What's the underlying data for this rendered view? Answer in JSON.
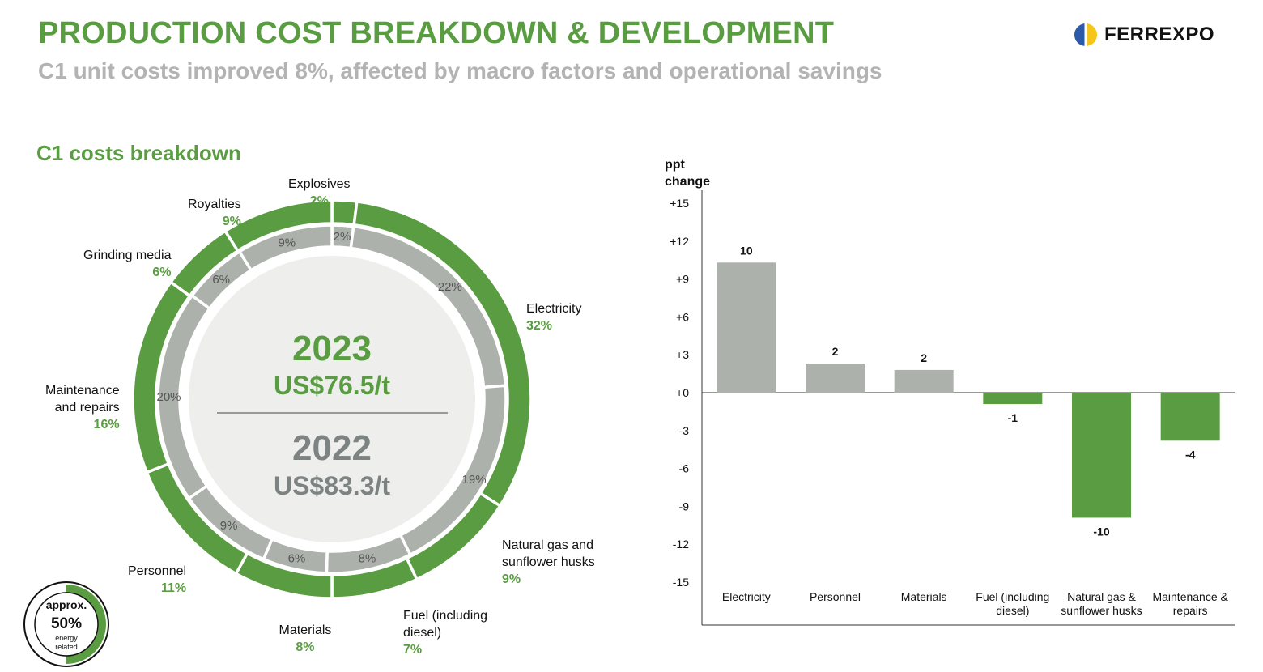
{
  "header": {
    "title": "PRODUCTION COST BREAKDOWN & DEVELOPMENT",
    "subtitle": "C1 unit costs improved 8%, affected by macro factors and operational savings",
    "logo_text": "FERREXPO"
  },
  "donut": {
    "section_title": "C1 costs breakdown",
    "center": {
      "year_current": "2023",
      "value_current": "US$76.5/t",
      "year_prior": "2022",
      "value_prior": "US$83.3/t"
    },
    "badge": {
      "line1": "approx.",
      "line2": "50%",
      "line3": "energy",
      "line4": "related",
      "fraction": 0.5
    },
    "colors": {
      "outer": "#5a9c41",
      "inner": "#acb1ab",
      "center": "#eeefed"
    }
  },
  "chart_data": [
    {
      "type": "pie",
      "name": "2023",
      "categories": [
        "Explosives",
        "Electricity",
        "Natural gas and sunflower husks",
        "Fuel (including diesel)",
        "Materials",
        "Personnel",
        "Maintenance and repairs",
        "Grinding media",
        "Royalties"
      ],
      "values": [
        2,
        32,
        9,
        7,
        8,
        11,
        16,
        6,
        9
      ],
      "labels": [
        "2%",
        "32%",
        "9%",
        "7%",
        "8%",
        "11%",
        "16%",
        "6%",
        "9%"
      ],
      "label_lines": [
        [
          "Explosives"
        ],
        [
          "Electricity"
        ],
        [
          "Natural gas and",
          "sunflower husks"
        ],
        [
          "Fuel (including",
          "diesel)"
        ],
        [
          "Materials"
        ],
        [
          "Personnel"
        ],
        [
          "Maintenance",
          "and repairs"
        ],
        [
          "Grinding media"
        ],
        [
          "Royalties"
        ]
      ]
    },
    {
      "type": "pie",
      "name": "2022",
      "categories": [
        "Explosives",
        "Electricity",
        "Natural gas and sunflower husks",
        "Fuel (including diesel)",
        "Materials",
        "Personnel",
        "Maintenance and repairs",
        "Grinding media",
        "Royalties"
      ],
      "values": [
        2,
        22,
        19,
        8,
        6,
        9,
        20,
        6,
        9
      ],
      "labels": [
        "2%",
        "22%",
        "19%",
        "8%",
        "6%",
        "9%",
        "20%",
        "6%",
        "9%"
      ]
    },
    {
      "type": "bar",
      "ylabel": "ppt change",
      "ylabel_lines": [
        "ppt",
        "change"
      ],
      "categories": [
        "Electricity",
        "Personnel",
        "Materials",
        "Fuel (including diesel)",
        "Natural gas & sunflower husks",
        "Maintenance & repairs"
      ],
      "category_lines": [
        [
          "Electricity"
        ],
        [
          "Personnel"
        ],
        [
          "Materials"
        ],
        [
          "Fuel (including",
          "diesel)"
        ],
        [
          "Natural gas &",
          "sunflower husks"
        ],
        [
          "Maintenance &",
          "repairs"
        ]
      ],
      "values": [
        10.3,
        2.3,
        1.8,
        -0.9,
        -9.9,
        -3.8
      ],
      "data_labels": [
        "10",
        "2",
        "2",
        "-1",
        "-10",
        "-4"
      ],
      "ylim": [
        -15,
        15
      ],
      "yticks": [
        "+15",
        "+12",
        "+9",
        "+6",
        "+3",
        "+0",
        "-3",
        "-6",
        "-9",
        "-12",
        "-15"
      ],
      "colors": {
        "positive": "#acb1ab",
        "negative": "#5a9c41"
      }
    }
  ]
}
